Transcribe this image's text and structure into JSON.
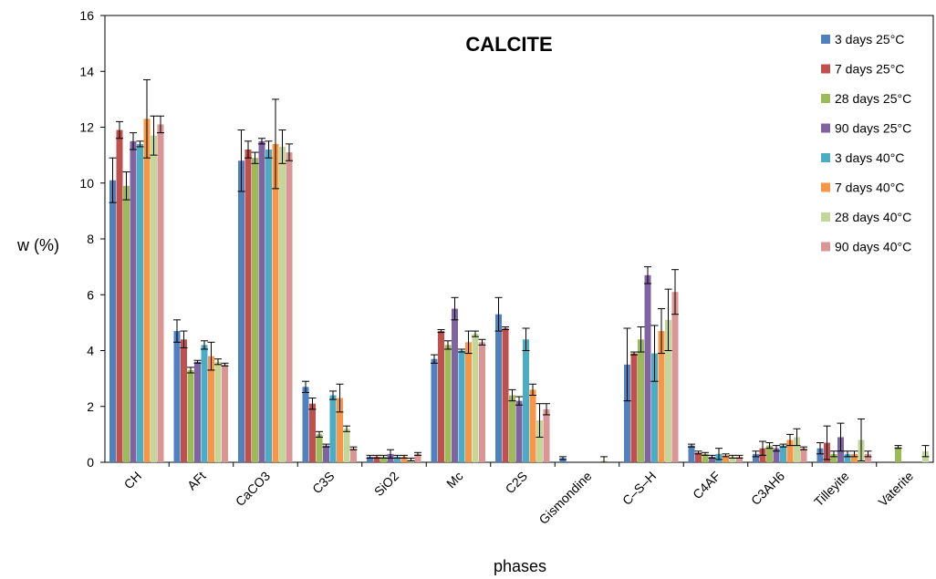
{
  "chart_data": {
    "type": "bar",
    "title": "CALCITE",
    "xlabel": "phases",
    "ylabel": "w (%)",
    "ylim": [
      0,
      16
    ],
    "yticks": [
      0,
      2,
      4,
      6,
      8,
      10,
      12,
      14,
      16
    ],
    "grid": false,
    "legend_position": "top-right",
    "categories": [
      "CH",
      "AFt",
      "CaCO3",
      "C3S",
      "SiO2",
      "Mc",
      "C2S",
      "Gismondine",
      "C–S–H",
      "C4AF",
      "C3AH6",
      "Tilleyite",
      "Vaterite"
    ],
    "series": [
      {
        "name": "3 days 25°C",
        "color": "#4f81bd",
        "values": [
          10.1,
          4.7,
          10.8,
          2.7,
          0.2,
          3.7,
          5.3,
          0.15,
          3.5,
          0.6,
          0.3,
          0.5,
          0.0
        ],
        "errors": [
          0.8,
          0.4,
          1.1,
          0.2,
          0.05,
          0.15,
          0.6,
          0.05,
          1.3,
          0.05,
          0.1,
          0.2,
          0.0
        ]
      },
      {
        "name": "7 days 25°C",
        "color": "#c0504d",
        "values": [
          11.9,
          4.4,
          11.2,
          2.1,
          0.2,
          4.7,
          4.8,
          0.0,
          3.9,
          0.35,
          0.5,
          0.7,
          0.0
        ],
        "errors": [
          0.3,
          0.3,
          0.3,
          0.2,
          0.05,
          0.05,
          0.05,
          0.0,
          0.05,
          0.05,
          0.25,
          0.6,
          0.0
        ]
      },
      {
        "name": "28 days 25°C",
        "color": "#9bbb59",
        "values": [
          9.9,
          3.3,
          10.9,
          1.0,
          0.2,
          4.2,
          2.4,
          0.0,
          4.4,
          0.3,
          0.6,
          0.3,
          0.55
        ],
        "errors": [
          0.5,
          0.1,
          0.2,
          0.1,
          0.05,
          0.15,
          0.2,
          0.0,
          0.45,
          0.05,
          0.1,
          0.1,
          0.05
        ]
      },
      {
        "name": "90 days 25°C",
        "color": "#8064a2",
        "values": [
          11.5,
          3.6,
          11.5,
          0.6,
          0.3,
          5.5,
          2.2,
          0.0,
          6.7,
          0.2,
          0.5,
          0.9,
          0.0
        ],
        "errors": [
          0.3,
          0.05,
          0.1,
          0.05,
          0.15,
          0.4,
          0.15,
          0.0,
          0.3,
          0.05,
          0.1,
          0.5,
          0.0
        ]
      },
      {
        "name": "3 days 40°C",
        "color": "#4bacc6",
        "values": [
          11.4,
          4.2,
          11.2,
          2.4,
          0.2,
          4.0,
          4.4,
          0.0,
          3.9,
          0.3,
          0.6,
          0.3,
          0.0
        ],
        "errors": [
          0.1,
          0.15,
          0.3,
          0.15,
          0.05,
          0.05,
          0.4,
          0.0,
          1.0,
          0.2,
          0.05,
          0.1,
          0.0
        ]
      },
      {
        "name": "7 days 40°C",
        "color": "#f79646",
        "values": [
          12.3,
          3.8,
          11.4,
          2.3,
          0.2,
          4.3,
          2.6,
          0.0,
          4.7,
          0.25,
          0.8,
          0.3,
          0.0
        ],
        "errors": [
          1.4,
          0.5,
          1.6,
          0.5,
          0.05,
          0.4,
          0.2,
          0.0,
          0.8,
          0.05,
          0.2,
          0.1,
          0.0
        ]
      },
      {
        "name": "28 days 40°C",
        "color": "#c4d79b",
        "values": [
          11.7,
          3.6,
          11.3,
          1.2,
          0.1,
          4.6,
          1.5,
          0.05,
          5.1,
          0.2,
          0.9,
          0.8,
          0.4
        ],
        "errors": [
          0.7,
          0.1,
          0.6,
          0.1,
          0.05,
          0.1,
          0.6,
          0.15,
          1.1,
          0.05,
          0.3,
          0.75,
          0.2
        ]
      },
      {
        "name": "90 days 40°C",
        "color": "#d99694",
        "values": [
          12.1,
          3.5,
          11.1,
          0.5,
          0.3,
          4.3,
          1.9,
          0.0,
          6.1,
          0.2,
          0.5,
          0.3,
          0.0
        ],
        "errors": [
          0.3,
          0.05,
          0.3,
          0.05,
          0.05,
          0.1,
          0.2,
          0.0,
          0.8,
          0.05,
          0.05,
          0.1,
          0.0
        ]
      }
    ]
  }
}
